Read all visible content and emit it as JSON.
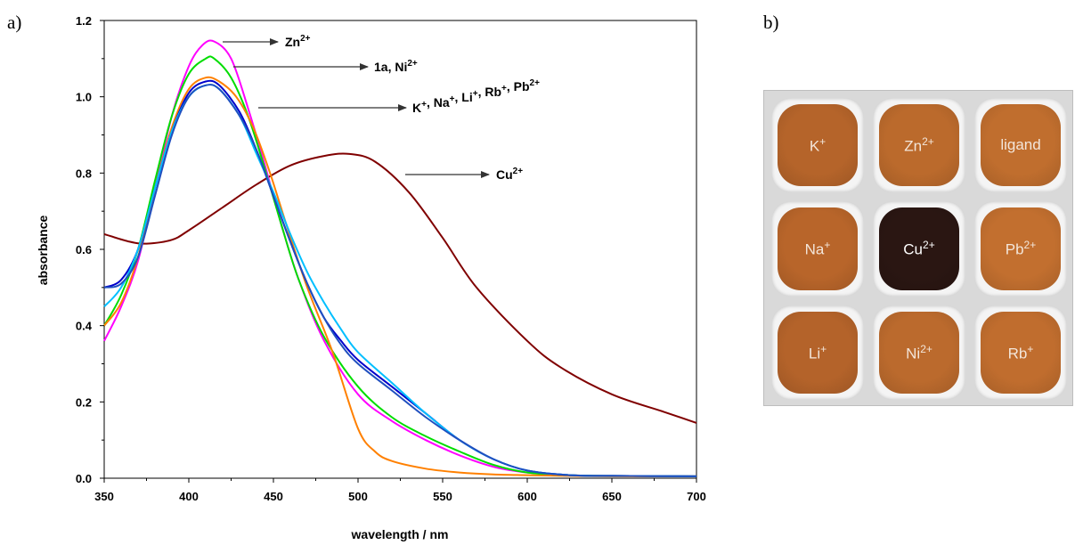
{
  "panel_a_label": "a)",
  "panel_b_label": "b)",
  "chart_data": {
    "type": "line",
    "title": "",
    "xlabel": "wavelength / nm",
    "ylabel": "absorbance",
    "xlim": [
      350,
      700
    ],
    "ylim": [
      0.0,
      1.2
    ],
    "xticks": [
      "350",
      "400",
      "450",
      "500",
      "550",
      "600",
      "650",
      "700"
    ],
    "yticks": [
      "0.0",
      "0.2",
      "0.4",
      "0.6",
      "0.8",
      "1.0",
      "1.2"
    ],
    "grid": false,
    "legend": "none",
    "annotations": [
      {
        "text": "Zn",
        "sup": "2+"
      },
      {
        "text": "1a, Ni",
        "sup": "2+"
      },
      {
        "text": "K",
        "sup": "+",
        "rest": [
          [
            ", Na",
            "+"
          ],
          [
            ", Li",
            "+"
          ],
          [
            ", Rb",
            "+"
          ],
          [
            ", Pb",
            "2+"
          ]
        ]
      },
      {
        "text": "Cu",
        "sup": "2+"
      }
    ],
    "series": [
      {
        "color": "#800000",
        "x": [
          350,
          365,
          375,
          390,
          400,
          420,
          440,
          460,
          480,
          495,
          510,
          530,
          550,
          570,
          600,
          620,
          650,
          680,
          700
        ],
        "y": [
          0.64,
          0.62,
          0.615,
          0.625,
          0.65,
          0.71,
          0.77,
          0.82,
          0.845,
          0.85,
          0.83,
          0.75,
          0.63,
          0.5,
          0.36,
          0.29,
          0.22,
          0.175,
          0.145
        ]
      },
      {
        "color": "#ff00ff",
        "x": [
          350,
          360,
          370,
          380,
          390,
          400,
          408,
          415,
          425,
          435,
          445,
          455,
          465,
          480,
          500,
          520,
          540,
          560,
          580,
          600,
          625,
          650,
          700
        ],
        "y": [
          0.36,
          0.45,
          0.57,
          0.76,
          0.95,
          1.08,
          1.135,
          1.145,
          1.1,
          0.97,
          0.82,
          0.66,
          0.52,
          0.36,
          0.22,
          0.15,
          0.1,
          0.06,
          0.03,
          0.015,
          0.008,
          0.006,
          0.005
        ]
      },
      {
        "color": "#00dd00",
        "x": [
          350,
          360,
          370,
          380,
          390,
          400,
          410,
          415,
          425,
          435,
          445,
          455,
          465,
          480,
          500,
          520,
          540,
          560,
          580,
          600,
          625,
          650,
          700
        ],
        "y": [
          0.4,
          0.48,
          0.6,
          0.78,
          0.95,
          1.06,
          1.1,
          1.1,
          1.05,
          0.95,
          0.81,
          0.66,
          0.52,
          0.37,
          0.24,
          0.16,
          0.11,
          0.07,
          0.035,
          0.015,
          0.008,
          0.006,
          0.005
        ]
      },
      {
        "color": "#ff8000",
        "x": [
          350,
          360,
          370,
          380,
          390,
          400,
          410,
          418,
          428,
          438,
          448,
          458,
          470,
          485,
          500,
          510,
          520,
          540,
          560,
          580,
          600,
          625,
          650,
          700
        ],
        "y": [
          0.4,
          0.46,
          0.58,
          0.76,
          0.92,
          1.02,
          1.05,
          1.04,
          1.0,
          0.92,
          0.8,
          0.66,
          0.5,
          0.33,
          0.13,
          0.07,
          0.045,
          0.025,
          0.015,
          0.01,
          0.008,
          0.006,
          0.005,
          0.005
        ]
      },
      {
        "color": "#0000cc",
        "x": [
          350,
          360,
          370,
          380,
          390,
          400,
          410,
          418,
          430,
          440,
          450,
          460,
          470,
          480,
          490,
          500,
          520,
          540,
          560,
          580,
          600,
          625,
          650,
          700
        ],
        "y": [
          0.5,
          0.52,
          0.6,
          0.76,
          0.91,
          1.01,
          1.04,
          1.03,
          0.96,
          0.86,
          0.74,
          0.62,
          0.51,
          0.42,
          0.36,
          0.31,
          0.24,
          0.17,
          0.1,
          0.05,
          0.02,
          0.008,
          0.006,
          0.005
        ]
      },
      {
        "color": "#00bfff",
        "x": [
          350,
          360,
          370,
          380,
          390,
          400,
          410,
          418,
          430,
          440,
          450,
          460,
          470,
          480,
          490,
          500,
          520,
          540,
          560,
          580,
          600,
          625,
          650,
          700
        ],
        "y": [
          0.45,
          0.5,
          0.6,
          0.76,
          0.91,
          1.0,
          1.03,
          1.02,
          0.95,
          0.85,
          0.75,
          0.64,
          0.54,
          0.46,
          0.39,
          0.33,
          0.25,
          0.17,
          0.1,
          0.05,
          0.02,
          0.008,
          0.006,
          0.005
        ]
      },
      {
        "color": "#1f4fbf",
        "x": [
          350,
          360,
          370,
          380,
          390,
          400,
          410,
          418,
          430,
          440,
          450,
          460,
          470,
          480,
          490,
          500,
          520,
          540,
          560,
          580,
          600,
          625,
          650,
          700
        ],
        "y": [
          0.5,
          0.51,
          0.58,
          0.74,
          0.9,
          1.0,
          1.03,
          1.02,
          0.95,
          0.86,
          0.74,
          0.62,
          0.51,
          0.42,
          0.35,
          0.3,
          0.23,
          0.16,
          0.1,
          0.05,
          0.02,
          0.008,
          0.006,
          0.005
        ]
      }
    ]
  },
  "photo": {
    "wells": [
      {
        "label": "K",
        "sup": "+",
        "color": "#b5642a"
      },
      {
        "label": "Zn",
        "sup": "2+",
        "color": "#bb6a2c"
      },
      {
        "label": "ligand",
        "sup": "",
        "color": "#c06e2e"
      },
      {
        "label": "Na",
        "sup": "+",
        "color": "#b8652a"
      },
      {
        "label": "Cu",
        "sup": "2+",
        "color": "#2a1612"
      },
      {
        "label": "Pb",
        "sup": "2+",
        "color": "#c26f2f"
      },
      {
        "label": "Li",
        "sup": "+",
        "color": "#b4632a"
      },
      {
        "label": "Ni",
        "sup": "2+",
        "color": "#bb6a2d"
      },
      {
        "label": "Rb",
        "sup": "+",
        "color": "#c06d2e"
      }
    ]
  }
}
